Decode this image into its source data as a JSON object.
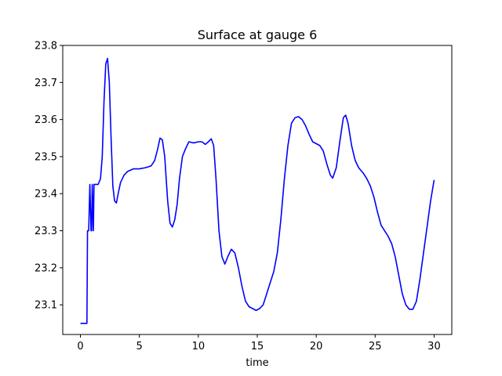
{
  "chart_data": {
    "type": "line",
    "title": "Surface at gauge 6",
    "xlabel": "time",
    "ylabel": "",
    "xlim": [
      -1.5,
      31.5
    ],
    "ylim": [
      23.02,
      23.8
    ],
    "grid": false,
    "xticks": [
      0,
      5,
      10,
      15,
      20,
      25,
      30
    ],
    "yticks": [
      23.1,
      23.2,
      23.3,
      23.4,
      23.5,
      23.6,
      23.7,
      23.8
    ],
    "ytick_labels": [
      "23.1",
      "23.2",
      "23.3",
      "23.4",
      "23.5",
      "23.6",
      "23.7",
      "23.8"
    ],
    "xtick_labels": [
      "0",
      "5",
      "10",
      "15",
      "20",
      "25",
      "30"
    ],
    "series": [
      {
        "color": "#0000ff",
        "points": [
          [
            0.0,
            23.05
          ],
          [
            0.55,
            23.05
          ],
          [
            0.6,
            23.3
          ],
          [
            0.7,
            23.3
          ],
          [
            0.8,
            23.425
          ],
          [
            0.9,
            23.3
          ],
          [
            0.95,
            23.3
          ],
          [
            1.0,
            23.425
          ],
          [
            1.1,
            23.3
          ],
          [
            1.15,
            23.425
          ],
          [
            1.5,
            23.425
          ],
          [
            1.7,
            23.44
          ],
          [
            1.85,
            23.5
          ],
          [
            2.0,
            23.65
          ],
          [
            2.15,
            23.75
          ],
          [
            2.3,
            23.765
          ],
          [
            2.45,
            23.7
          ],
          [
            2.6,
            23.55
          ],
          [
            2.75,
            23.42
          ],
          [
            2.9,
            23.38
          ],
          [
            3.05,
            23.375
          ],
          [
            3.2,
            23.4
          ],
          [
            3.4,
            23.43
          ],
          [
            3.7,
            23.45
          ],
          [
            4.0,
            23.46
          ],
          [
            4.5,
            23.467
          ],
          [
            5.0,
            23.467
          ],
          [
            5.5,
            23.47
          ],
          [
            6.0,
            23.475
          ],
          [
            6.3,
            23.49
          ],
          [
            6.55,
            23.52
          ],
          [
            6.75,
            23.55
          ],
          [
            6.95,
            23.545
          ],
          [
            7.15,
            23.5
          ],
          [
            7.4,
            23.38
          ],
          [
            7.6,
            23.32
          ],
          [
            7.8,
            23.31
          ],
          [
            8.0,
            23.33
          ],
          [
            8.2,
            23.37
          ],
          [
            8.4,
            23.44
          ],
          [
            8.65,
            23.5
          ],
          [
            8.9,
            23.52
          ],
          [
            9.2,
            23.54
          ],
          [
            9.6,
            23.537
          ],
          [
            10.0,
            23.54
          ],
          [
            10.3,
            23.54
          ],
          [
            10.6,
            23.533
          ],
          [
            10.85,
            23.54
          ],
          [
            11.1,
            23.548
          ],
          [
            11.3,
            23.53
          ],
          [
            11.5,
            23.44
          ],
          [
            11.75,
            23.3
          ],
          [
            12.0,
            23.23
          ],
          [
            12.25,
            23.21
          ],
          [
            12.5,
            23.23
          ],
          [
            12.8,
            23.25
          ],
          [
            13.1,
            23.24
          ],
          [
            13.4,
            23.2
          ],
          [
            13.7,
            23.15
          ],
          [
            14.0,
            23.11
          ],
          [
            14.3,
            23.095
          ],
          [
            14.6,
            23.09
          ],
          [
            14.9,
            23.085
          ],
          [
            15.2,
            23.09
          ],
          [
            15.5,
            23.1
          ],
          [
            15.8,
            23.13
          ],
          [
            16.1,
            23.16
          ],
          [
            16.4,
            23.19
          ],
          [
            16.7,
            23.24
          ],
          [
            17.0,
            23.33
          ],
          [
            17.3,
            23.44
          ],
          [
            17.6,
            23.53
          ],
          [
            17.9,
            23.59
          ],
          [
            18.2,
            23.605
          ],
          [
            18.5,
            23.608
          ],
          [
            18.8,
            23.6
          ],
          [
            19.1,
            23.583
          ],
          [
            19.4,
            23.56
          ],
          [
            19.7,
            23.54
          ],
          [
            20.0,
            23.535
          ],
          [
            20.3,
            23.53
          ],
          [
            20.6,
            23.515
          ],
          [
            20.9,
            23.48
          ],
          [
            21.2,
            23.45
          ],
          [
            21.4,
            23.442
          ],
          [
            21.7,
            23.47
          ],
          [
            22.0,
            23.54
          ],
          [
            22.3,
            23.605
          ],
          [
            22.5,
            23.612
          ],
          [
            22.7,
            23.59
          ],
          [
            23.0,
            23.53
          ],
          [
            23.3,
            23.49
          ],
          [
            23.6,
            23.47
          ],
          [
            24.0,
            23.455
          ],
          [
            24.3,
            23.44
          ],
          [
            24.6,
            23.42
          ],
          [
            24.9,
            23.39
          ],
          [
            25.2,
            23.35
          ],
          [
            25.5,
            23.315
          ],
          [
            25.8,
            23.3
          ],
          [
            26.1,
            23.285
          ],
          [
            26.4,
            23.265
          ],
          [
            26.7,
            23.23
          ],
          [
            27.0,
            23.18
          ],
          [
            27.3,
            23.13
          ],
          [
            27.6,
            23.1
          ],
          [
            27.9,
            23.088
          ],
          [
            28.2,
            23.088
          ],
          [
            28.5,
            23.11
          ],
          [
            28.8,
            23.17
          ],
          [
            29.1,
            23.24
          ],
          [
            29.4,
            23.31
          ],
          [
            29.7,
            23.38
          ],
          [
            30.0,
            23.437
          ]
        ]
      }
    ]
  }
}
